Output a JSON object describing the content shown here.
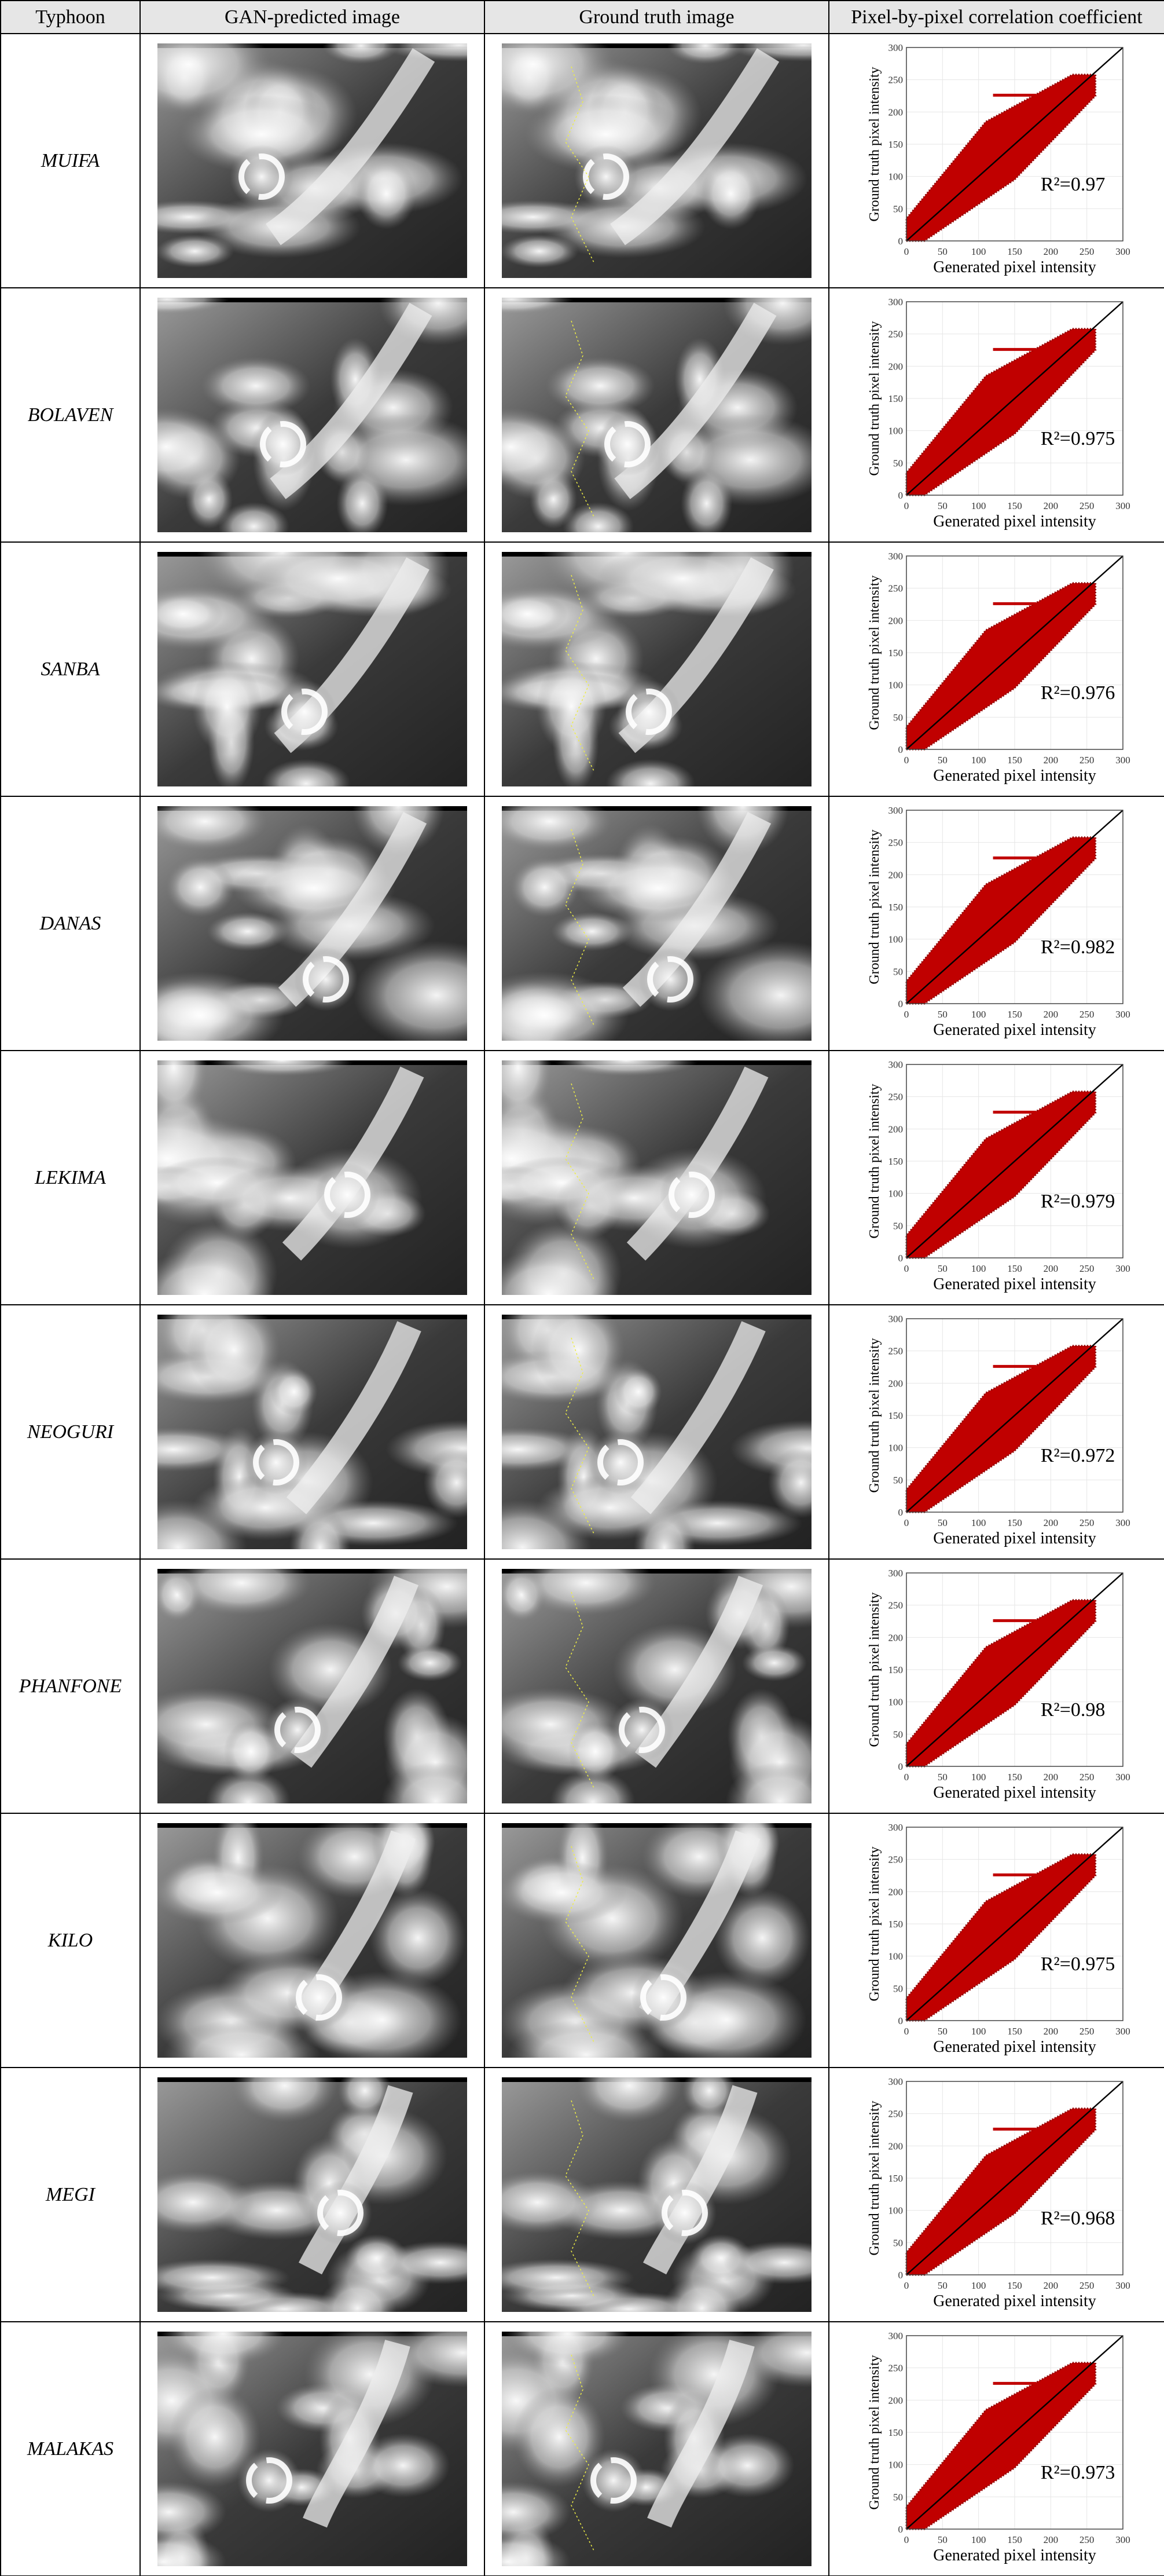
{
  "header": {
    "columns": [
      "Typhoon",
      "GAN-predicted image",
      "Ground truth image",
      "Pixel-by-pixel correlation coefficient"
    ]
  },
  "plot": {
    "xlabel": "Generated pixel intensity",
    "ylabel": "Ground truth pixel intensity",
    "xlim": [
      0,
      300
    ],
    "ylim": [
      0,
      300
    ],
    "xticks": [
      0,
      50,
      100,
      150,
      200,
      250,
      300
    ],
    "yticks": [
      0,
      50,
      100,
      150,
      200,
      250,
      300
    ]
  },
  "rows": [
    {
      "typhoon": "MUIFA",
      "r2": "R²=0.97"
    },
    {
      "typhoon": "BOLAVEN",
      "r2": "R²=0.975"
    },
    {
      "typhoon": "SANBA",
      "r2": "R²=0.976"
    },
    {
      "typhoon": "DANAS",
      "r2": "R²=0.982"
    },
    {
      "typhoon": "LEKIMA",
      "r2": "R²=0.979"
    },
    {
      "typhoon": "NEOGURI",
      "r2": "R²=0.972"
    },
    {
      "typhoon": "PHANFONE",
      "r2": "R²=0.98"
    },
    {
      "typhoon": "KILO",
      "r2": "R²=0.975"
    },
    {
      "typhoon": "MEGI",
      "r2": "R²=0.968"
    },
    {
      "typhoon": "MALAKAS",
      "r2": "R²=0.973"
    }
  ]
}
